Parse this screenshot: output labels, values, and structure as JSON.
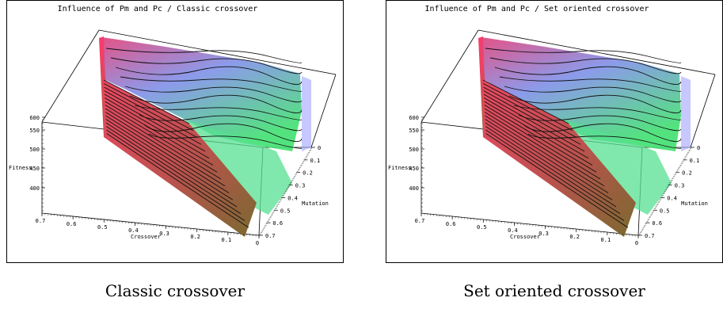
{
  "captions": [
    "Classic crossover",
    "Set oriented crossover"
  ],
  "chart_data": [
    {
      "type": "surface3d",
      "title": "Influence of Pm and Pc / Classic crossover",
      "zlabel": "Fitness",
      "xlabel": "Crossover",
      "ylabel": "Mutation",
      "z_ticks": [
        "400",
        "450",
        "500",
        "550",
        "600"
      ],
      "x_ticks": [
        "0.7",
        "0.6",
        "0.5",
        "0.4",
        "0.3",
        "0.2",
        "0.1",
        "0"
      ],
      "y_ticks": [
        "0",
        "0.1",
        "0.2",
        "0.3",
        "0.4",
        "0.5",
        "0.6",
        "0.7"
      ],
      "zlim": [
        350,
        600
      ],
      "colors": {
        "high": "#e0407a",
        "mid": "#7f8fe8",
        "low": "#40e070",
        "edge": "#c84060"
      }
    },
    {
      "type": "surface3d",
      "title": "Influence of Pm and Pc / Set oriented crossover",
      "zlabel": "Fitness",
      "xlabel": "Crossover",
      "ylabel": "Mutation",
      "z_ticks": [
        "400",
        "450",
        "500",
        "550",
        "600"
      ],
      "x_ticks": [
        "0.7",
        "0.6",
        "0.5",
        "0.4",
        "0.3",
        "0.2",
        "0.1",
        "0"
      ],
      "y_ticks": [
        "0",
        "0.1",
        "0.2",
        "0.3",
        "0.4",
        "0.5",
        "0.6",
        "0.7"
      ],
      "zlim": [
        350,
        600
      ],
      "colors": {
        "high": "#e0407a",
        "mid": "#7f8fe8",
        "low": "#40e070",
        "edge": "#c84060"
      }
    }
  ]
}
